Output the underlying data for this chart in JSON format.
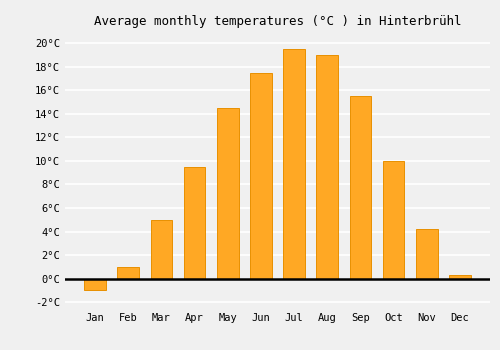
{
  "months": [
    "Jan",
    "Feb",
    "Mar",
    "Apr",
    "May",
    "Jun",
    "Jul",
    "Aug",
    "Sep",
    "Oct",
    "Nov",
    "Dec"
  ],
  "temperatures": [
    -1.0,
    1.0,
    5.0,
    9.5,
    14.5,
    17.5,
    19.5,
    19.0,
    15.5,
    10.0,
    4.2,
    0.3
  ],
  "bar_color": "#FFA824",
  "bar_edge_color": "#E89000",
  "title": "Average monthly temperatures (°C ) in Hinterbrühl",
  "ylim": [
    -2.5,
    21.0
  ],
  "yticks": [
    -2,
    0,
    2,
    4,
    6,
    8,
    10,
    12,
    14,
    16,
    18,
    20
  ],
  "background_color": "#f0f0f0",
  "plot_bg_color": "#f0f0f0",
  "grid_color": "#ffffff",
  "title_fontsize": 9,
  "tick_fontsize": 7.5
}
